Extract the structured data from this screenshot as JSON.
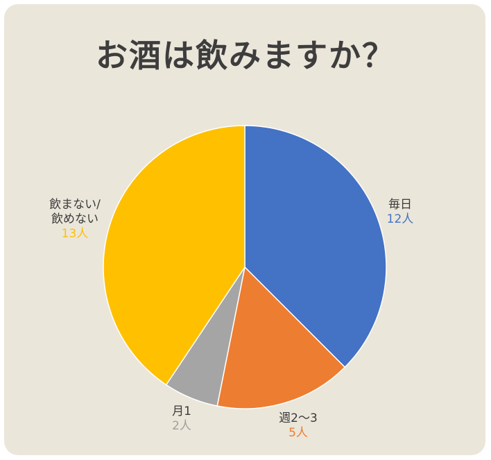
{
  "chart_data": {
    "type": "pie",
    "title": "お酒は飲みますか？",
    "slices": [
      {
        "label": "毎日",
        "value": 12,
        "value_label": "12人",
        "color": "#4472c4"
      },
      {
        "label": "週2〜3",
        "value": 5,
        "value_label": "5人",
        "color": "#ed7d31"
      },
      {
        "label": "月1",
        "value": 2,
        "value_label": "2人",
        "color": "#a5a5a5"
      },
      {
        "label_lines": [
          "飲まない/",
          "飲めない"
        ],
        "value": 13,
        "value_label": "13人",
        "color": "#ffc000"
      }
    ]
  }
}
